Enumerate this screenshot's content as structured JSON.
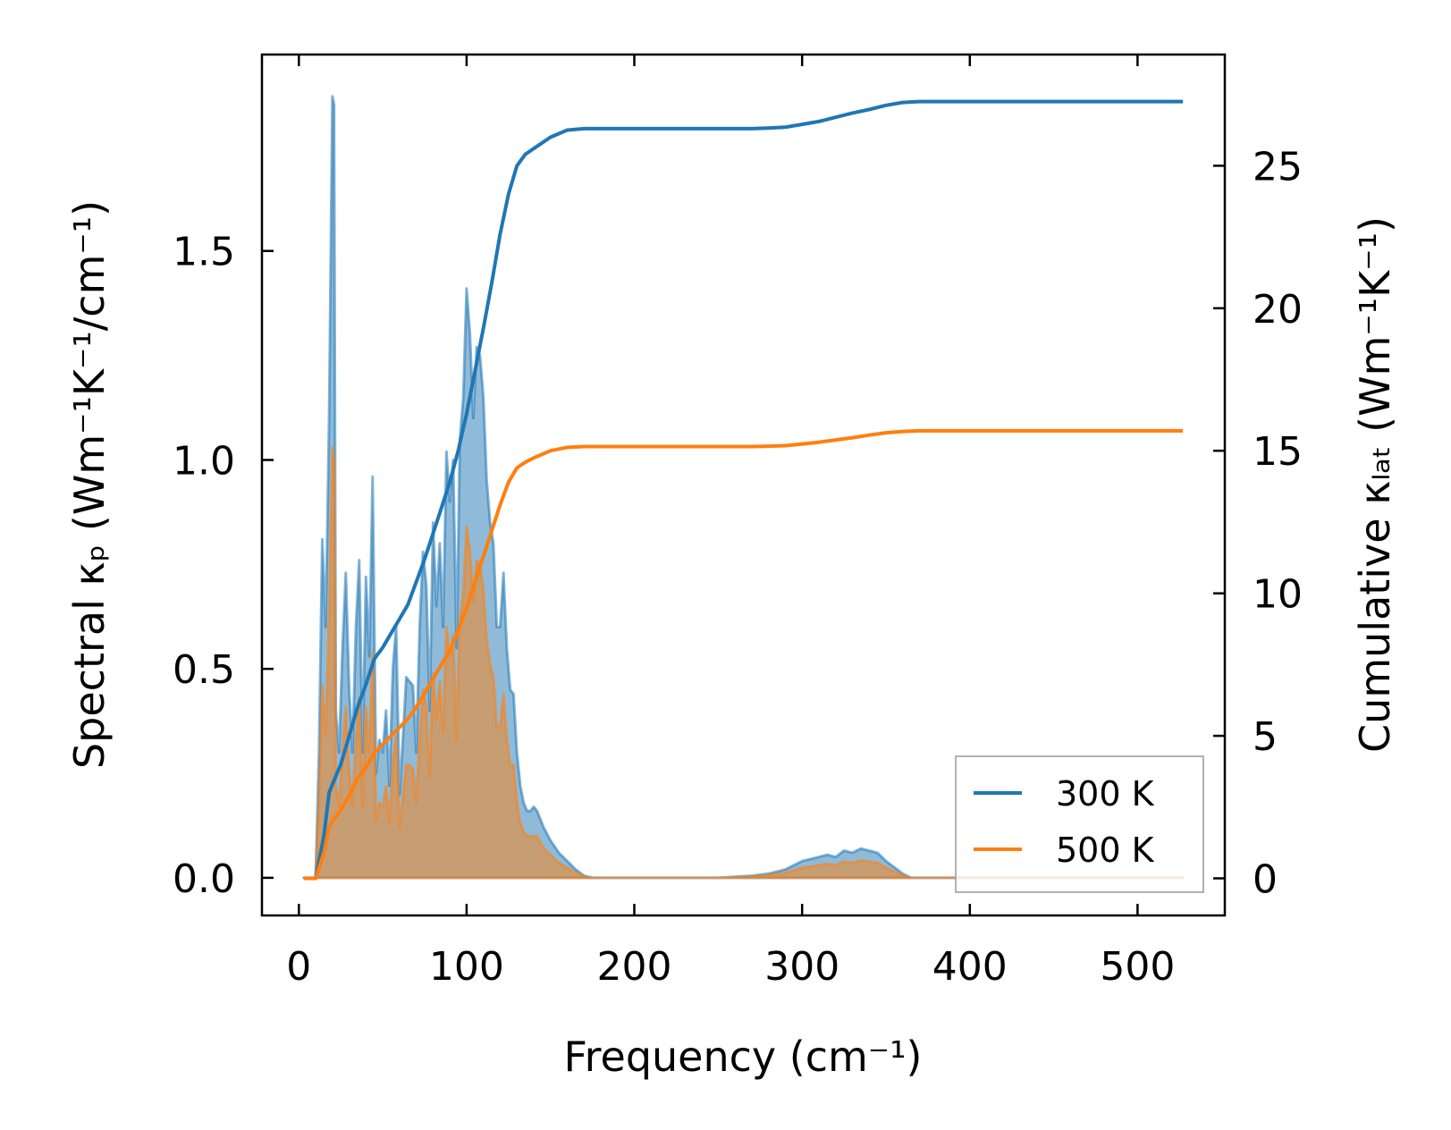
{
  "chart_data": {
    "type": "line",
    "xlabel": "Frequency (cm⁻¹)",
    "ylabel": "Spectral κₚ (Wm⁻¹K⁻¹/cm⁻¹)",
    "y2label": "Cumulative κₗₐₜ (Wm⁻¹K⁻¹)",
    "xlim": [
      -22,
      552
    ],
    "ylim": [
      -0.09,
      1.97
    ],
    "y2lim": [
      -1.3,
      28.9
    ],
    "xticks": [
      0,
      100,
      200,
      300,
      400,
      500
    ],
    "yticks": [
      0.0,
      0.5,
      1.0,
      1.5
    ],
    "ytick_labels": [
      "0.0",
      "0.5",
      "1.0",
      "1.5"
    ],
    "y2ticks": [
      0,
      5,
      10,
      15,
      20,
      25
    ],
    "legend_position": "lower-right",
    "grid": false,
    "colors": {
      "300 K": "#1f77b4",
      "500 K": "#ff7f0e"
    },
    "series": [
      {
        "name": "300 K",
        "spectral": {
          "x": [
            3,
            10,
            12,
            14,
            16,
            18,
            20,
            21,
            22,
            24,
            26,
            28,
            30,
            32,
            34,
            36,
            38,
            40,
            42,
            44,
            46,
            48,
            50,
            52,
            54,
            56,
            58,
            60,
            62,
            64,
            66,
            68,
            70,
            72,
            74,
            76,
            78,
            80,
            82,
            84,
            86,
            88,
            90,
            92,
            94,
            96,
            98,
            100,
            102,
            104,
            106,
            108,
            110,
            112,
            114,
            116,
            118,
            120,
            122,
            124,
            126,
            128,
            130,
            132,
            134,
            136,
            138,
            140,
            142,
            146,
            150,
            155,
            160,
            165,
            170,
            175,
            180,
            190,
            200,
            250,
            270,
            280,
            290,
            300,
            305,
            310,
            315,
            320,
            325,
            330,
            335,
            340,
            345,
            350,
            355,
            360,
            365,
            370,
            400,
            500,
            527
          ],
          "y": [
            0.0,
            0.0,
            0.3,
            0.81,
            0.6,
            1.1,
            1.87,
            1.85,
            0.4,
            0.3,
            0.55,
            0.73,
            0.45,
            0.3,
            0.6,
            0.76,
            0.3,
            0.72,
            0.53,
            0.96,
            0.25,
            0.33,
            0.3,
            0.4,
            0.22,
            0.5,
            0.6,
            0.2,
            0.33,
            0.48,
            0.47,
            0.46,
            0.3,
            0.6,
            0.78,
            0.7,
            0.4,
            0.85,
            0.65,
            0.8,
            0.6,
            1.02,
            0.9,
            1.0,
            0.55,
            1.05,
            1.15,
            1.41,
            1.3,
            1.1,
            1.27,
            1.25,
            1.15,
            0.95,
            0.85,
            0.8,
            0.6,
            0.6,
            0.73,
            0.55,
            0.45,
            0.44,
            0.3,
            0.22,
            0.18,
            0.16,
            0.16,
            0.17,
            0.16,
            0.12,
            0.09,
            0.06,
            0.04,
            0.02,
            0.005,
            0.0,
            0.0,
            0.0,
            0.0,
            0.0,
            0.005,
            0.01,
            0.02,
            0.04,
            0.045,
            0.05,
            0.055,
            0.05,
            0.065,
            0.06,
            0.07,
            0.065,
            0.06,
            0.04,
            0.025,
            0.01,
            0.0,
            0.0,
            0.0,
            0.0,
            0.0
          ]
        },
        "cumulative": {
          "x": [
            3,
            10,
            15,
            18,
            20,
            25,
            30,
            35,
            40,
            45,
            50,
            55,
            60,
            65,
            70,
            75,
            80,
            85,
            90,
            95,
            100,
            105,
            110,
            115,
            120,
            125,
            130,
            135,
            140,
            150,
            160,
            170,
            180,
            200,
            250,
            270,
            280,
            290,
            300,
            310,
            320,
            330,
            340,
            350,
            360,
            370,
            400,
            500,
            527
          ],
          "y": [
            0,
            0,
            1.5,
            3.0,
            3.3,
            4.0,
            5.0,
            6.0,
            6.8,
            7.7,
            8.1,
            8.6,
            9.1,
            9.6,
            10.4,
            11.2,
            12.1,
            13.0,
            13.9,
            15.0,
            16.3,
            17.8,
            19.3,
            20.9,
            22.6,
            24.0,
            25.0,
            25.4,
            25.6,
            26.0,
            26.25,
            26.3,
            26.3,
            26.3,
            26.3,
            26.3,
            26.32,
            26.35,
            26.45,
            26.55,
            26.7,
            26.85,
            26.97,
            27.12,
            27.22,
            27.25,
            27.25,
            27.25,
            27.25
          ]
        }
      },
      {
        "name": "500 K",
        "spectral": {
          "x": [
            3,
            10,
            12,
            14,
            16,
            18,
            20,
            21,
            22,
            24,
            26,
            28,
            30,
            32,
            34,
            36,
            38,
            40,
            42,
            44,
            46,
            48,
            50,
            52,
            54,
            56,
            58,
            60,
            62,
            64,
            66,
            68,
            70,
            72,
            74,
            76,
            78,
            80,
            82,
            84,
            86,
            88,
            90,
            92,
            94,
            96,
            98,
            100,
            102,
            104,
            106,
            108,
            110,
            112,
            114,
            116,
            118,
            120,
            122,
            124,
            126,
            128,
            130,
            132,
            134,
            136,
            138,
            140,
            142,
            146,
            150,
            155,
            160,
            165,
            170,
            175,
            180,
            190,
            200,
            250,
            270,
            280,
            290,
            300,
            305,
            310,
            315,
            320,
            325,
            330,
            335,
            340,
            345,
            350,
            355,
            360,
            365,
            370,
            400,
            500,
            527
          ],
          "y": [
            0.0,
            0.0,
            0.18,
            0.46,
            0.34,
            0.62,
            1.03,
            1.0,
            0.22,
            0.17,
            0.3,
            0.41,
            0.25,
            0.17,
            0.33,
            0.43,
            0.17,
            0.41,
            0.3,
            0.54,
            0.14,
            0.18,
            0.17,
            0.22,
            0.13,
            0.28,
            0.34,
            0.12,
            0.19,
            0.27,
            0.27,
            0.26,
            0.18,
            0.34,
            0.45,
            0.41,
            0.24,
            0.49,
            0.38,
            0.47,
            0.35,
            0.6,
            0.53,
            0.58,
            0.33,
            0.62,
            0.68,
            0.84,
            0.78,
            0.66,
            0.76,
            0.75,
            0.69,
            0.57,
            0.51,
            0.48,
            0.36,
            0.36,
            0.44,
            0.33,
            0.27,
            0.27,
            0.18,
            0.13,
            0.11,
            0.1,
            0.1,
            0.1,
            0.1,
            0.07,
            0.055,
            0.036,
            0.024,
            0.012,
            0.003,
            0.0,
            0.0,
            0.0,
            0.0,
            0.0,
            0.003,
            0.006,
            0.012,
            0.024,
            0.027,
            0.03,
            0.033,
            0.03,
            0.039,
            0.036,
            0.042,
            0.039,
            0.036,
            0.024,
            0.015,
            0.006,
            0.0,
            0.0,
            0.0,
            0.0,
            0.0
          ]
        },
        "cumulative": {
          "x": [
            3,
            10,
            15,
            18,
            20,
            25,
            30,
            35,
            40,
            45,
            50,
            55,
            60,
            65,
            70,
            75,
            80,
            85,
            90,
            95,
            100,
            105,
            110,
            115,
            120,
            125,
            130,
            135,
            140,
            150,
            160,
            170,
            180,
            200,
            250,
            270,
            280,
            290,
            300,
            310,
            320,
            330,
            340,
            350,
            360,
            370,
            400,
            500,
            527
          ],
          "y": [
            0,
            0,
            0.9,
            1.8,
            2.0,
            2.4,
            2.9,
            3.5,
            3.9,
            4.4,
            4.7,
            5.0,
            5.3,
            5.6,
            6.0,
            6.5,
            7.0,
            7.5,
            8.0,
            8.7,
            9.5,
            10.4,
            11.3,
            12.2,
            13.1,
            13.9,
            14.4,
            14.6,
            14.75,
            15.0,
            15.12,
            15.15,
            15.15,
            15.15,
            15.15,
            15.15,
            15.16,
            15.18,
            15.24,
            15.3,
            15.38,
            15.46,
            15.55,
            15.63,
            15.68,
            15.7,
            15.7,
            15.7,
            15.7
          ]
        }
      }
    ]
  }
}
